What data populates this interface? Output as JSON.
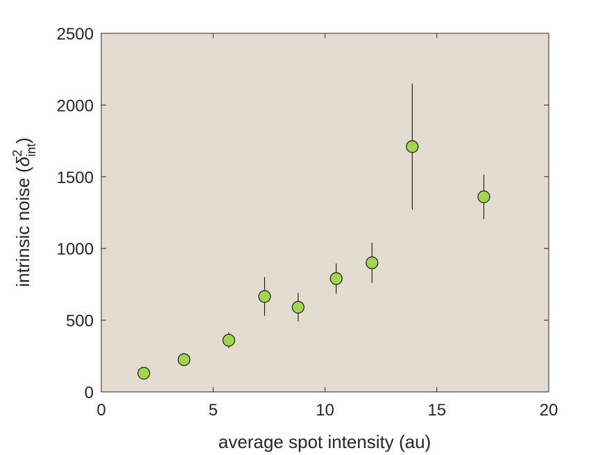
{
  "colors": {
    "plot_background": "#e3ddd1",
    "marker_fill": "#a2d64d",
    "marker_edge": "#1a1a1a",
    "axis": "#262626"
  },
  "chart_data": {
    "type": "scatter",
    "title": "",
    "xlabel": "average spot intensity (au)",
    "ylabel": {
      "prefix": "intrinsic noise (",
      "symbol": "δ",
      "superscript": "2",
      "subscript": "int",
      "suffix": ")"
    },
    "xlim": [
      0,
      20
    ],
    "ylim": [
      0,
      2500
    ],
    "xticks": [
      0,
      5,
      10,
      15,
      20
    ],
    "yticks": [
      0,
      500,
      1000,
      1500,
      2000,
      2500
    ],
    "grid": false,
    "legend": "none",
    "points": [
      {
        "x": 1.9,
        "y": 130,
        "err": 0
      },
      {
        "x": 3.7,
        "y": 225,
        "err": 0
      },
      {
        "x": 5.7,
        "y": 360,
        "err": 55
      },
      {
        "x": 7.3,
        "y": 665,
        "err": 135
      },
      {
        "x": 8.8,
        "y": 590,
        "err": 100
      },
      {
        "x": 10.5,
        "y": 790,
        "err": 105
      },
      {
        "x": 12.1,
        "y": 900,
        "err": 140
      },
      {
        "x": 13.9,
        "y": 1710,
        "err": 440
      },
      {
        "x": 17.1,
        "y": 1360,
        "err": 155
      }
    ]
  }
}
